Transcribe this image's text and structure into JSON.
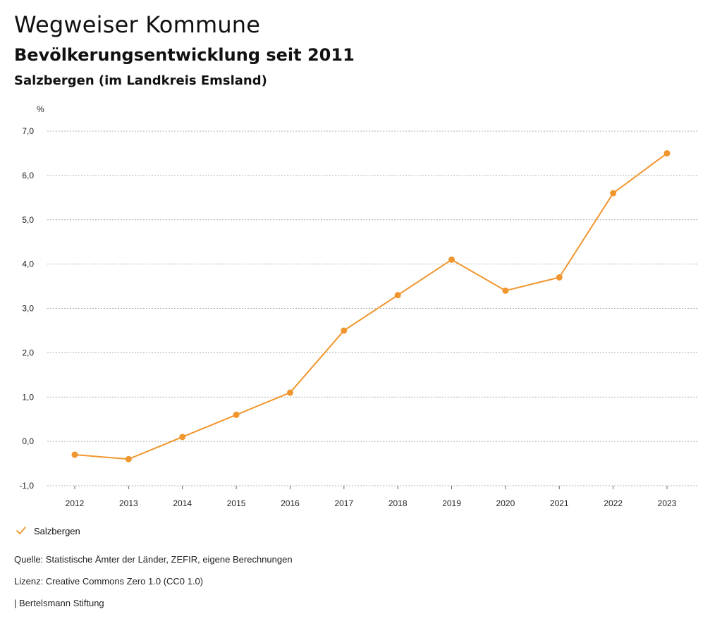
{
  "header": {
    "title": "Wegweiser Kommune",
    "subtitle": "Bevölkerungsentwicklung seit 2011",
    "place": "Salzbergen (im Landkreis Emsland)"
  },
  "chart_data": {
    "type": "line",
    "title": "Bevölkerungsentwicklung seit 2011",
    "ylabel": "%",
    "xlabel": "",
    "x": [
      "2012",
      "2013",
      "2014",
      "2015",
      "2016",
      "2017",
      "2018",
      "2019",
      "2020",
      "2021",
      "2022",
      "2023"
    ],
    "series": [
      {
        "name": "Salzbergen",
        "values": [
          -0.3,
          -0.4,
          0.1,
          0.6,
          1.1,
          2.5,
          3.3,
          4.1,
          3.4,
          3.7,
          5.6,
          6.5
        ],
        "color": "#f0962e"
      }
    ],
    "ylim": [
      -1.0,
      7.0
    ],
    "yticks": [
      "-1,0",
      "0,0",
      "1,0",
      "2,0",
      "3,0",
      "4,0",
      "5,0",
      "6,0",
      "7,0"
    ],
    "grid": true,
    "legend_position": "bottom-left"
  },
  "legend": {
    "label": "Salzbergen",
    "icon": "check-icon"
  },
  "footer": {
    "source": "Quelle: Statistische Ämter der Länder, ZEFIR, eigene Berechnungen",
    "license": "Lizenz: Creative Commons Zero 1.0 (CC0 1.0)",
    "publisher": "| Bertelsmann Stiftung"
  },
  "colors": {
    "accent": "#f0962e",
    "grid": "#999999",
    "text": "#111111"
  }
}
